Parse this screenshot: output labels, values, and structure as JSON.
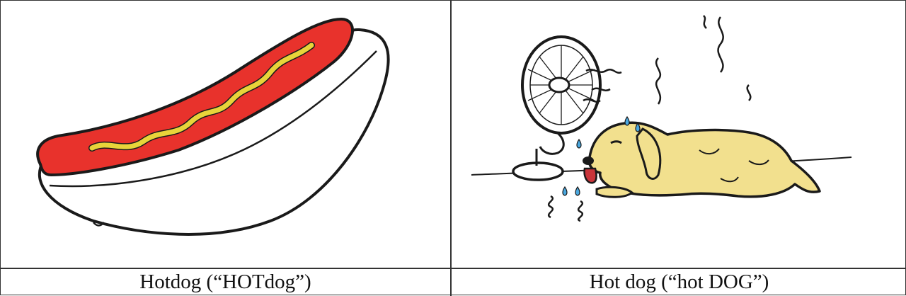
{
  "panels": [
    {
      "caption": "Hotdog (“HOTdog”)",
      "illustration": "hotdog-food"
    },
    {
      "caption": "Hot dog (“hot DOG”)",
      "illustration": "dog-by-fan"
    }
  ],
  "colors": {
    "sausage": "#e8322c",
    "mustard": "#e8d43a",
    "dog_fur": "#f2e08e",
    "tongue": "#c9353a",
    "sweat": "#4aa8e0",
    "ink": "#1a1a1a"
  }
}
